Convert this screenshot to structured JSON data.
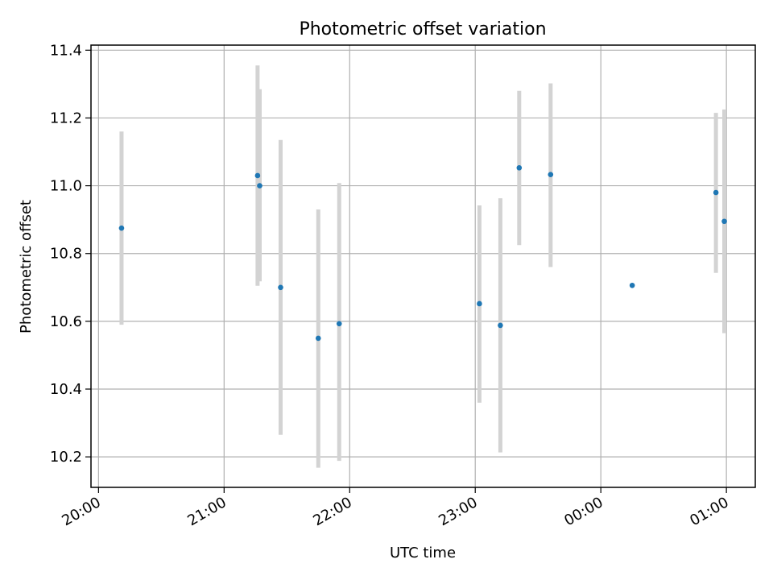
{
  "chart_data": {
    "type": "scatter",
    "title": "Photometric offset variation",
    "xlabel": "UTC time",
    "ylabel": "Photometric offset",
    "x_tick_labels": [
      "20:00",
      "21:00",
      "22:00",
      "23:00",
      "00:00",
      "01:00"
    ],
    "y_tick_labels": [
      "10.2",
      "10.4",
      "10.6",
      "10.8",
      "11.0",
      "11.2",
      "11.4"
    ],
    "x_ticks_hours": [
      0,
      1,
      2,
      3,
      4,
      5
    ],
    "y_ticks": [
      10.2,
      10.4,
      10.6,
      10.8,
      11.0,
      11.2,
      11.4
    ],
    "xlim_hours_since_20": [
      -0.06,
      5.23
    ],
    "ylim": [
      10.11,
      11.415
    ],
    "grid": true,
    "colors": {
      "point": "#1f77b4",
      "errorbar": "#d3d3d3",
      "grid": "#b0b0b0",
      "axes": "#000000"
    },
    "points": [
      {
        "time": "20:11",
        "offset": 10.875,
        "err_low": 10.59,
        "err_high": 11.16
      },
      {
        "time": "21:16",
        "offset": 11.03,
        "err_low": 10.705,
        "err_high": 11.355
      },
      {
        "time": "21:17",
        "offset": 11.0,
        "err_low": 10.718,
        "err_high": 11.285
      },
      {
        "time": "21:27",
        "offset": 10.7,
        "err_low": 10.265,
        "err_high": 11.135
      },
      {
        "time": "21:45",
        "offset": 10.55,
        "err_low": 10.168,
        "err_high": 10.93
      },
      {
        "time": "21:55",
        "offset": 10.593,
        "err_low": 10.188,
        "err_high": 11.008
      },
      {
        "time": "23:02",
        "offset": 10.652,
        "err_low": 10.36,
        "err_high": 10.942
      },
      {
        "time": "23:12",
        "offset": 10.588,
        "err_low": 10.213,
        "err_high": 10.963
      },
      {
        "time": "23:21",
        "offset": 11.053,
        "err_low": 10.825,
        "err_high": 11.28
      },
      {
        "time": "23:36",
        "offset": 11.033,
        "err_low": 10.76,
        "err_high": 11.302
      },
      {
        "time": "00:15",
        "offset": 10.706,
        "err_low": 10.706,
        "err_high": 10.706
      },
      {
        "time": "00:55",
        "offset": 10.98,
        "err_low": 10.743,
        "err_high": 11.215
      },
      {
        "time": "00:59",
        "offset": 10.895,
        "err_low": 10.565,
        "err_high": 11.225
      }
    ]
  }
}
